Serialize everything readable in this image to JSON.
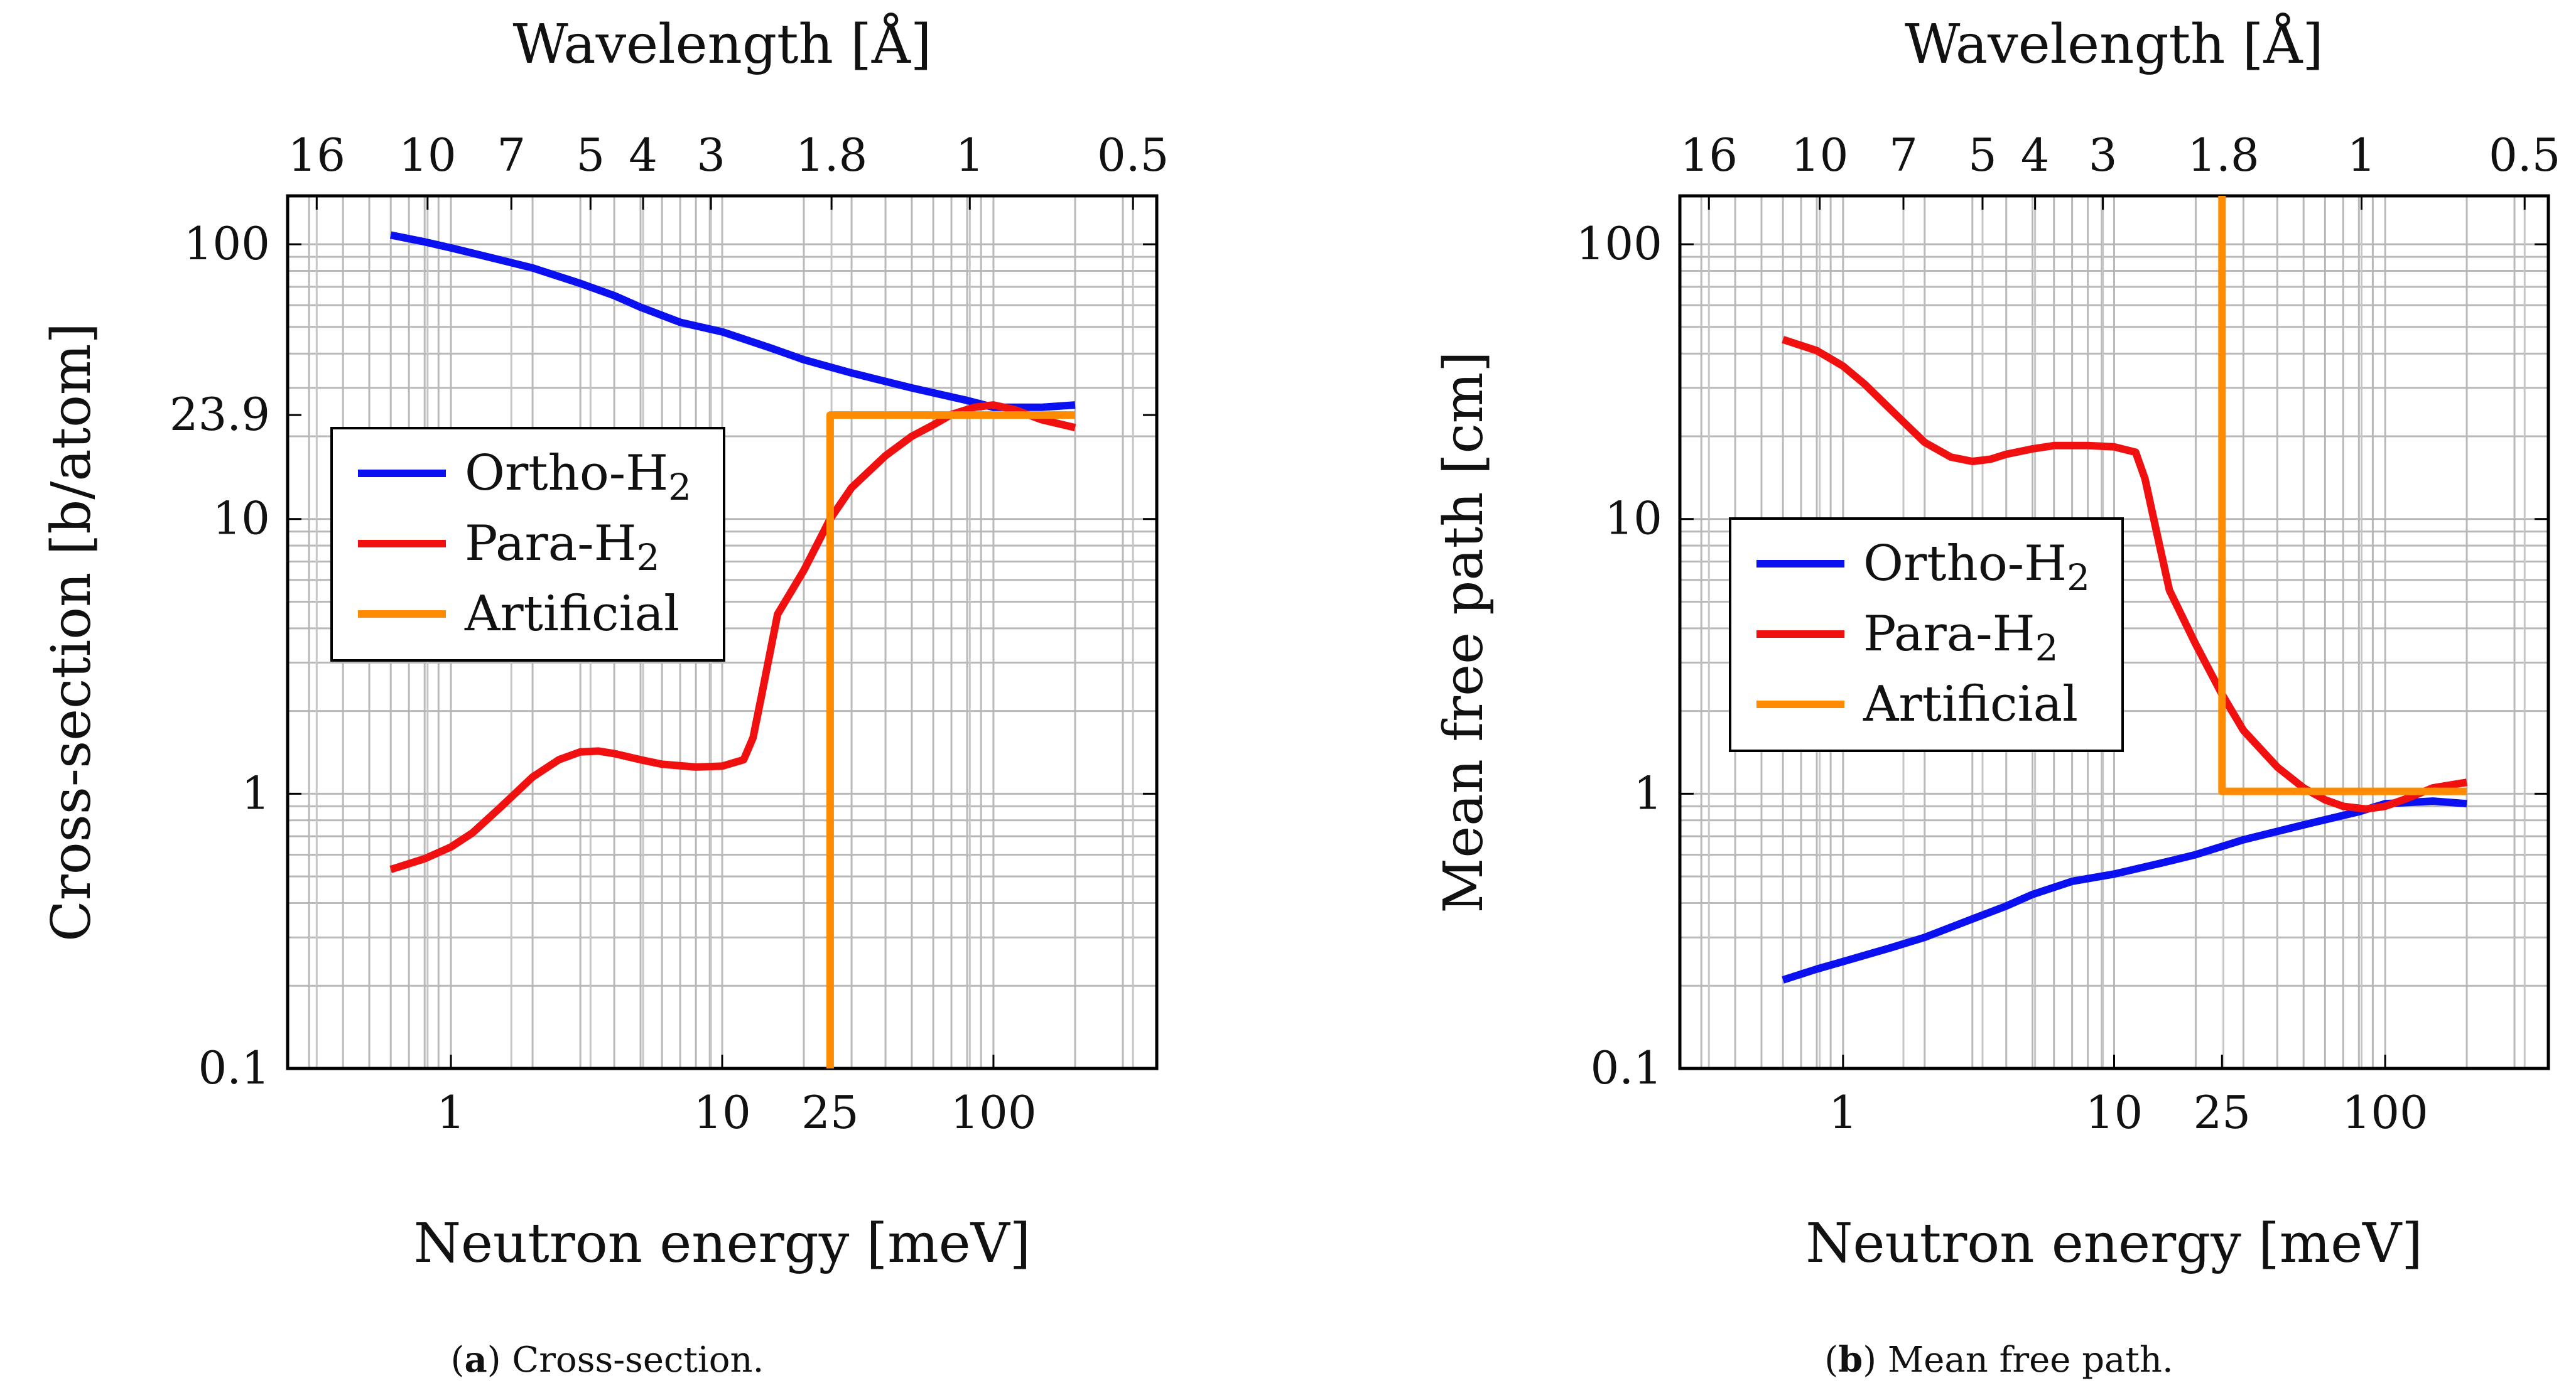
{
  "chart_data": [
    {
      "type": "line",
      "title": "",
      "xlabel": "Neutron energy [meV]",
      "ylabel": "Cross-section [b/atom]",
      "top_axis_label": "Wavelength [Å]",
      "xscale": "log",
      "yscale": "log",
      "xlim": [
        0.25,
        400
      ],
      "ylim": [
        0.1,
        150
      ],
      "x_ticks": [
        {
          "v": 1,
          "label": "1"
        },
        {
          "v": 10,
          "label": "10"
        },
        {
          "v": 25,
          "label": "25"
        },
        {
          "v": 100,
          "label": "100"
        }
      ],
      "y_ticks": [
        {
          "v": 0.1,
          "label": "0.1"
        },
        {
          "v": 1,
          "label": "1"
        },
        {
          "v": 10,
          "label": "10"
        },
        {
          "v": 23.9,
          "label": "23.9"
        },
        {
          "v": 100,
          "label": "100"
        }
      ],
      "top_ticks": [
        {
          "v": 0.32,
          "label": "16"
        },
        {
          "v": 0.82,
          "label": "10"
        },
        {
          "v": 1.67,
          "label": "7"
        },
        {
          "v": 3.27,
          "label": "5"
        },
        {
          "v": 5.11,
          "label": "4"
        },
        {
          "v": 9.09,
          "label": "3"
        },
        {
          "v": 25.3,
          "label": "1.8"
        },
        {
          "v": 81.8,
          "label": "1"
        },
        {
          "v": 327,
          "label": "0.5"
        }
      ],
      "legend": {
        "position": "middle-left",
        "entries": [
          "Ortho-H2",
          "Para-H2",
          "Artificial"
        ]
      },
      "series": [
        {
          "name": "Ortho-H2",
          "color": "#0a10f0",
          "x": [
            0.6,
            0.8,
            1,
            1.5,
            2,
            3,
            4,
            5,
            7,
            10,
            15,
            20,
            30,
            50,
            80,
            100,
            150,
            200
          ],
          "y": [
            108,
            102,
            97,
            88,
            82,
            72,
            65,
            59,
            52,
            48,
            42,
            38,
            34,
            30,
            27,
            25.5,
            25.5,
            26
          ]
        },
        {
          "name": "Para-H2",
          "color": "#f01010",
          "x": [
            0.6,
            0.8,
            1,
            1.2,
            1.5,
            2,
            2.5,
            3,
            3.5,
            4,
            5,
            6,
            8,
            10,
            12,
            13,
            14,
            16,
            20,
            25,
            30,
            40,
            50,
            60,
            70,
            85,
            100,
            120,
            150,
            200
          ],
          "y": [
            0.53,
            0.58,
            0.64,
            0.72,
            0.88,
            1.15,
            1.33,
            1.42,
            1.43,
            1.4,
            1.33,
            1.28,
            1.25,
            1.26,
            1.33,
            1.6,
            2.3,
            4.5,
            6.5,
            10,
            13,
            17,
            20,
            22,
            24,
            25.5,
            26,
            25,
            23,
            21.5
          ]
        },
        {
          "name": "Artificial",
          "color": "#ff8c00",
          "x": [
            25,
            25,
            200
          ],
          "y": [
            0.1,
            23.9,
            23.9
          ]
        }
      ],
      "caption": {
        "letter": "a",
        "text": " Cross-section."
      }
    },
    {
      "type": "line",
      "title": "",
      "xlabel": "Neutron energy [meV]",
      "ylabel": "Mean free path [cm]",
      "top_axis_label": "Wavelength [Å]",
      "xscale": "log",
      "yscale": "log",
      "xlim": [
        0.25,
        400
      ],
      "ylim": [
        0.1,
        150
      ],
      "x_ticks": [
        {
          "v": 1,
          "label": "1"
        },
        {
          "v": 10,
          "label": "10"
        },
        {
          "v": 25,
          "label": "25"
        },
        {
          "v": 100,
          "label": "100"
        }
      ],
      "y_ticks": [
        {
          "v": 0.1,
          "label": "0.1"
        },
        {
          "v": 1,
          "label": "1"
        },
        {
          "v": 10,
          "label": "10"
        },
        {
          "v": 100,
          "label": "100"
        }
      ],
      "top_ticks": [
        {
          "v": 0.32,
          "label": "16"
        },
        {
          "v": 0.82,
          "label": "10"
        },
        {
          "v": 1.67,
          "label": "7"
        },
        {
          "v": 3.27,
          "label": "5"
        },
        {
          "v": 5.11,
          "label": "4"
        },
        {
          "v": 9.09,
          "label": "3"
        },
        {
          "v": 25.3,
          "label": "1.8"
        },
        {
          "v": 81.8,
          "label": "1"
        },
        {
          "v": 327,
          "label": "0.5"
        }
      ],
      "legend": {
        "position": "middle-left",
        "entries": [
          "Ortho-H2",
          "Para-H2",
          "Artificial"
        ]
      },
      "series": [
        {
          "name": "Ortho-H2",
          "color": "#0a10f0",
          "x": [
            0.6,
            0.8,
            1,
            1.5,
            2,
            3,
            4,
            5,
            7,
            10,
            15,
            20,
            30,
            50,
            80,
            100,
            150,
            200
          ],
          "y": [
            0.21,
            0.23,
            0.245,
            0.275,
            0.3,
            0.35,
            0.39,
            0.43,
            0.48,
            0.51,
            0.56,
            0.6,
            0.68,
            0.77,
            0.86,
            0.92,
            0.94,
            0.92
          ]
        },
        {
          "name": "Para-H2",
          "color": "#f01010",
          "x": [
            0.6,
            0.8,
            1,
            1.2,
            1.5,
            2,
            2.5,
            3,
            3.5,
            4,
            5,
            6,
            8,
            10,
            12,
            13,
            14,
            16,
            20,
            25,
            30,
            40,
            50,
            60,
            70,
            85,
            100,
            120,
            150,
            200
          ],
          "y": [
            45,
            41,
            36,
            31,
            25,
            19,
            16.8,
            16.2,
            16.5,
            17.2,
            18,
            18.5,
            18.5,
            18.3,
            17.5,
            14,
            10,
            5.5,
            3.5,
            2.3,
            1.7,
            1.25,
            1.05,
            0.95,
            0.9,
            0.88,
            0.9,
            0.96,
            1.05,
            1.1
          ]
        },
        {
          "name": "Artificial",
          "color": "#ff8c00",
          "x": [
            25,
            25,
            200
          ],
          "y": [
            150,
            1.02,
            1.02
          ]
        }
      ],
      "caption": {
        "letter": "b",
        "text": " Mean free path."
      }
    }
  ]
}
